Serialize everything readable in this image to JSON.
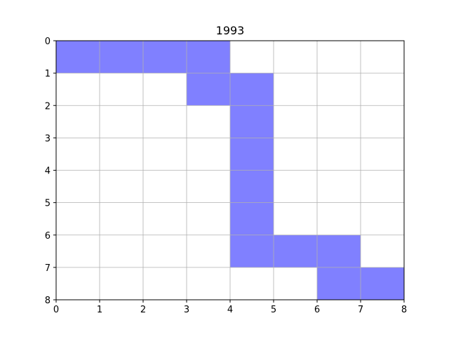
{
  "chart_data": {
    "type": "heatmap",
    "title": "1993",
    "xlabel": "",
    "ylabel": "",
    "xlim": [
      0,
      8
    ],
    "ylim": [
      0,
      8
    ],
    "y_inverted": true,
    "grid": true,
    "x_ticks": [
      "0",
      "1",
      "2",
      "3",
      "4",
      "5",
      "6",
      "7",
      "8"
    ],
    "y_ticks": [
      "0",
      "1",
      "2",
      "3",
      "4",
      "5",
      "6",
      "7",
      "8"
    ],
    "fill_color": "#8080ff",
    "grid_color": "#b0b0b0",
    "filled_cells": [
      {
        "col": 0,
        "row": 0
      },
      {
        "col": 1,
        "row": 0
      },
      {
        "col": 2,
        "row": 0
      },
      {
        "col": 3,
        "row": 0
      },
      {
        "col": 3,
        "row": 1
      },
      {
        "col": 4,
        "row": 1
      },
      {
        "col": 4,
        "row": 2
      },
      {
        "col": 4,
        "row": 3
      },
      {
        "col": 4,
        "row": 4
      },
      {
        "col": 4,
        "row": 5
      },
      {
        "col": 4,
        "row": 6
      },
      {
        "col": 5,
        "row": 6
      },
      {
        "col": 6,
        "row": 6
      },
      {
        "col": 6,
        "row": 7
      },
      {
        "col": 7,
        "row": 7
      }
    ]
  }
}
